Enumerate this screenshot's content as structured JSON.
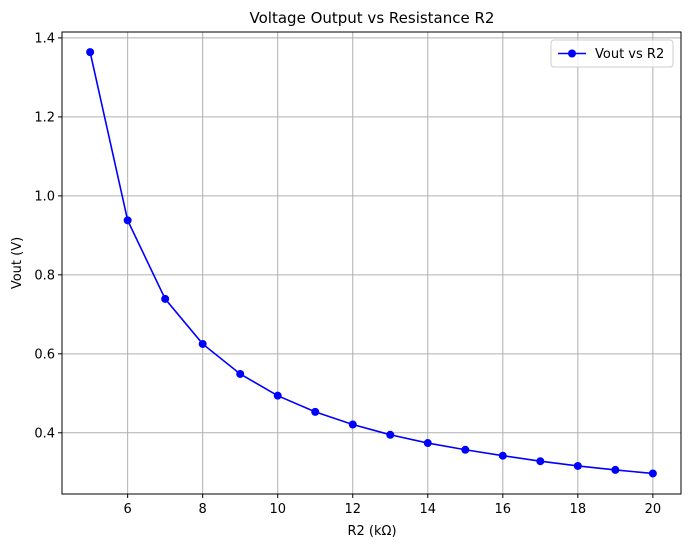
{
  "chart_data": {
    "type": "line",
    "title": "Voltage Output vs Resistance R2",
    "xlabel": "R2 (kΩ)",
    "ylabel": "Vout (V)",
    "xlim": [
      4.25,
      20.75
    ],
    "ylim": [
      0.245,
      1.415
    ],
    "xticks": [
      6,
      8,
      10,
      12,
      14,
      16,
      18,
      20
    ],
    "yticks": [
      0.4,
      0.6,
      0.8,
      1.0,
      1.2,
      1.4
    ],
    "grid": true,
    "legend_position": "top-right",
    "series": [
      {
        "name": "Vout vs R2",
        "color": "#0000ff",
        "marker": "circle",
        "x": [
          5,
          6,
          7,
          8,
          9,
          10,
          11,
          12,
          13,
          14,
          15,
          16,
          17,
          18,
          19,
          20
        ],
        "y": [
          1.364,
          0.938,
          0.739,
          0.625,
          0.549,
          0.494,
          0.453,
          0.421,
          0.395,
          0.374,
          0.357,
          0.342,
          0.328,
          0.316,
          0.306,
          0.297
        ]
      }
    ]
  }
}
